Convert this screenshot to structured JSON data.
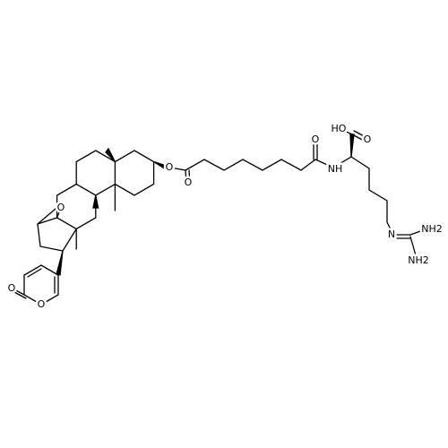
{
  "atoms": [
    {
      "label": "HO"
    },
    {
      "label": "O"
    },
    {
      "label": "O"
    },
    {
      "label": "NH"
    },
    {
      "label": "N"
    },
    {
      "label": "NH2"
    },
    {
      "label": "NH2"
    },
    {
      "label": "O"
    },
    {
      "label": "O"
    },
    {
      "label": "O"
    },
    {
      "label": "O"
    },
    {
      "label": "O"
    }
  ]
}
